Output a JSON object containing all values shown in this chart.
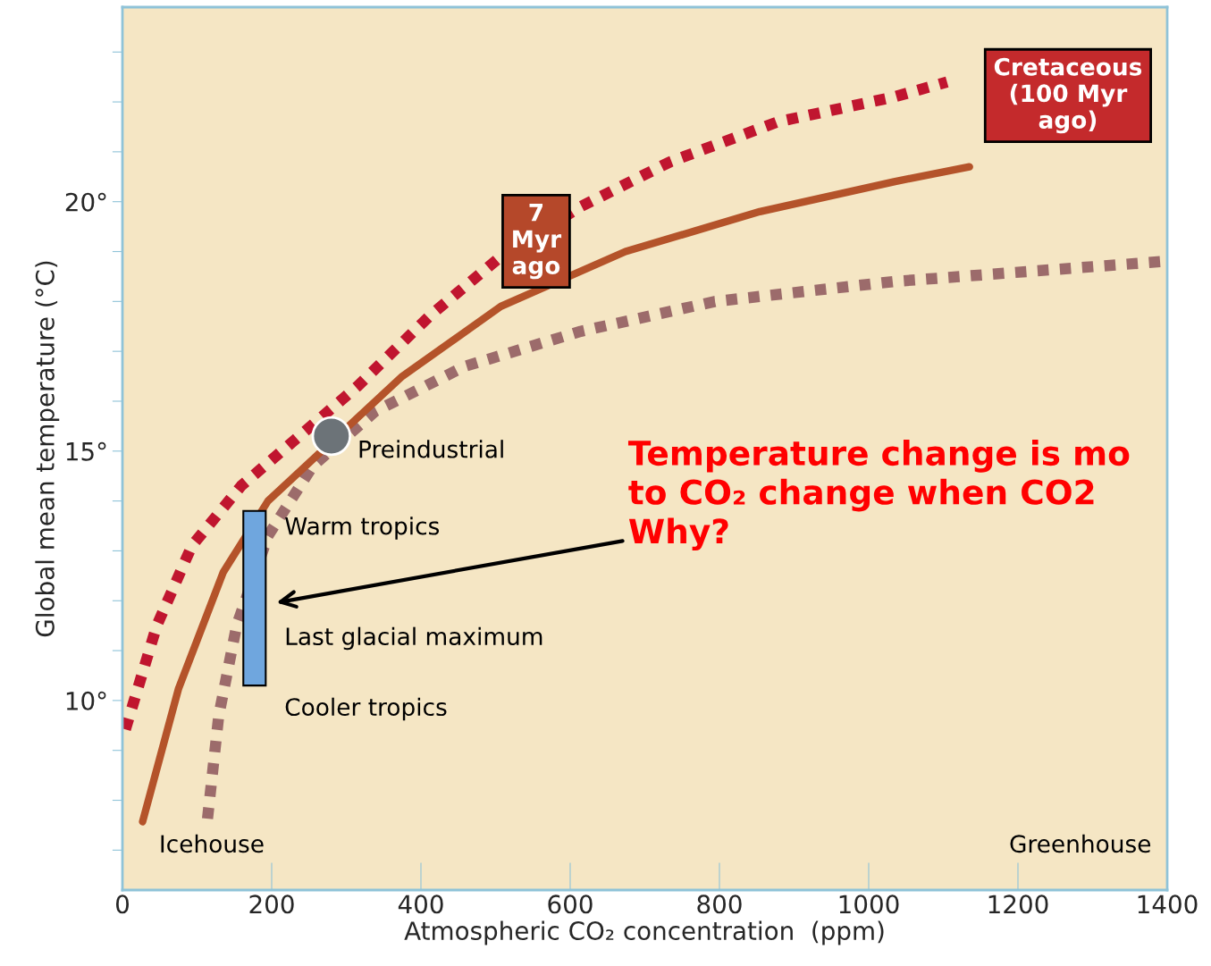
{
  "chart_data": {
    "type": "line",
    "xlabel": "Atmospheric CO₂ concentration  (ppm)",
    "ylabel": "Global mean temperature (°C)",
    "xlim": [
      0,
      1400
    ],
    "xticks": [
      0,
      200,
      400,
      600,
      800,
      1000,
      1200,
      1400
    ],
    "ylim": [
      6.2,
      23.9
    ],
    "yticks": [
      {
        "value": 7,
        "label": null
      },
      {
        "value": 8,
        "label": null
      },
      {
        "value": 9,
        "label": null
      },
      {
        "value": 10,
        "label": "10°"
      },
      {
        "value": 11,
        "label": null
      },
      {
        "value": 12,
        "label": null
      },
      {
        "value": 13,
        "label": null
      },
      {
        "value": 14,
        "label": null
      },
      {
        "value": 15,
        "label": "15°"
      },
      {
        "value": 16,
        "label": null
      },
      {
        "value": 17,
        "label": null
      },
      {
        "value": 18,
        "label": null
      },
      {
        "value": 19,
        "label": null
      },
      {
        "value": 20,
        "label": "20°"
      },
      {
        "value": 21,
        "label": null
      },
      {
        "value": 22,
        "label": null
      },
      {
        "value": 23,
        "label": null
      }
    ],
    "grid": false,
    "legend": false,
    "series": [
      {
        "line_style": "dotted",
        "color": "#c0152f",
        "x": [
          4,
          46,
          93,
          159,
          237,
          315,
          411,
          507,
          614,
          734,
          878,
          1034,
          1105
        ],
        "values": [
          9.42,
          11.5,
          13.1,
          14.3,
          15.3,
          16.3,
          17.7,
          18.9,
          19.9,
          20.8,
          21.6,
          22.1,
          22.4
        ]
      },
      {
        "line_style": "dotted",
        "color": "#9c6b6b",
        "x": [
          114,
          129,
          153,
          195,
          255,
          339,
          459,
          614,
          794,
          1034,
          1213,
          1393
        ],
        "values": [
          7.63,
          9.69,
          11.5,
          13.3,
          14.7,
          15.8,
          16.7,
          17.4,
          18.0,
          18.4,
          18.6,
          18.8
        ]
      },
      {
        "line_style": "solid",
        "color": "#b4532a",
        "x": [
          27,
          75,
          135,
          195,
          375,
          507,
          674,
          854,
          1034,
          1135
        ],
        "values": [
          7.57,
          10.23,
          12.57,
          14.0,
          16.5,
          17.9,
          19.0,
          19.8,
          20.4,
          20.7
        ]
      },
      {
        "type": "bar",
        "color": "#6fa6de",
        "x": [
          177
        ],
        "base": [
          10.3
        ],
        "values": [
          3.5
        ]
      },
      {
        "type": "scatter",
        "marker": "circle",
        "color": "#6c7378",
        "x": [
          280
        ],
        "values": [
          15.3
        ]
      }
    ],
    "annotations": [
      "Preindustrial",
      "7\nMyr\nago",
      "Cretaceous\n(100 Myr\nago)",
      "Warm tropics",
      "Last glacial maximum",
      "Cooler tropics",
      "Icehouse",
      "Greenhouse",
      "Temperature change is mo\nto CO₂ change when CO2\nWhy?"
    ]
  }
}
